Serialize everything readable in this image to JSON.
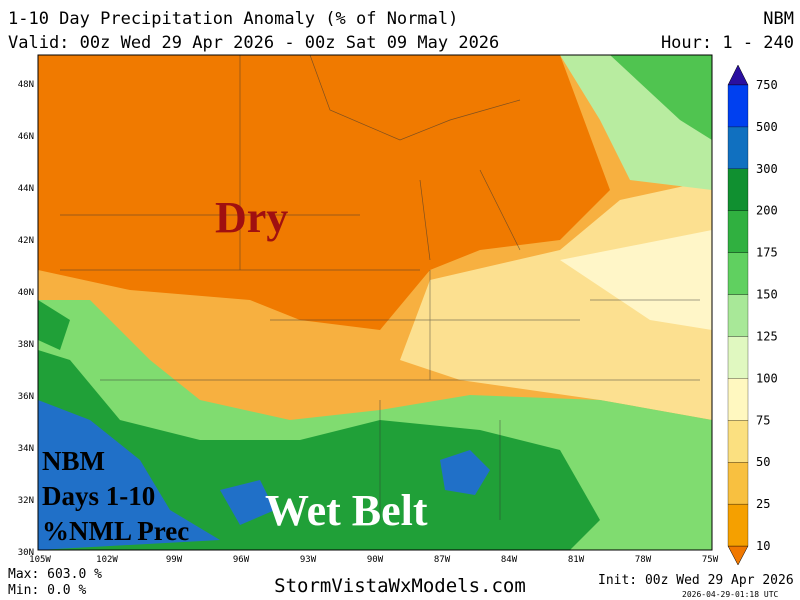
{
  "header": {
    "title": "1-10 Day Precipitation Anomaly (% of Normal)",
    "model": "NBM",
    "valid": "Valid: 00z Wed 29 Apr 2026 - 00z Sat 09 May 2026",
    "hour": "Hour: 1 - 240"
  },
  "map": {
    "lat_labels": [
      "48N",
      "46N",
      "44N",
      "42N",
      "40N",
      "38N",
      "36N",
      "34N",
      "32N",
      "30N"
    ],
    "lon_labels": [
      "105W",
      "102W",
      "99W",
      "96W",
      "93W",
      "90W",
      "87W",
      "84W",
      "81W",
      "78W",
      "75W"
    ],
    "annotations": {
      "dry": "Dry",
      "wet_belt": "Wet Belt",
      "info": [
        "NBM",
        "Days 1-10",
        "%NML Prec"
      ]
    }
  },
  "colorbar": {
    "levels": [
      "10",
      "25",
      "50",
      "75",
      "100",
      "125",
      "150",
      "175",
      "200",
      "300",
      "500",
      "750"
    ]
  },
  "footer": {
    "max": "Max: 603.0 %",
    "min": "Min: 0.0 %",
    "site": "StormVistaWxModels.com",
    "init": "Init: 00z Wed 29 Apr 2026",
    "timestamp": "2026-04-29-01:18 UTC"
  }
}
